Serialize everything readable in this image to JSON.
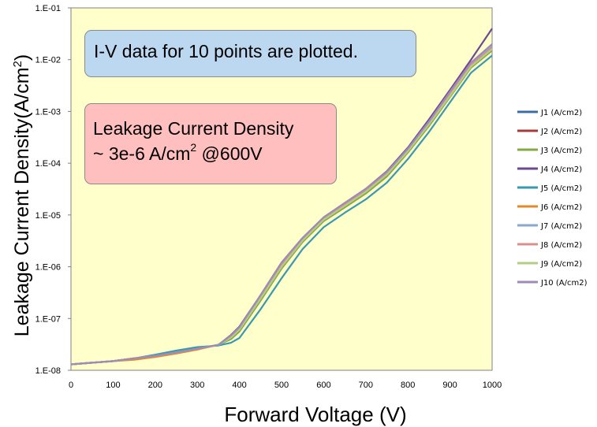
{
  "chart_data": {
    "type": "line",
    "xlabel": "Forward Voltage (V)",
    "ylabel": "Leakage Current Density(A/cm²)",
    "ylabel_main": "Leakage Current Density(A/cm",
    "ylabel_sup": "2",
    "ylabel_end": ")",
    "xlim": [
      0,
      1000
    ],
    "ylim": [
      1e-08,
      0.1
    ],
    "yscale": "log",
    "grid": false,
    "legend_position": "right",
    "plot_background": "#ffffcc",
    "x_ticks": [
      "0",
      "100",
      "200",
      "300",
      "400",
      "500",
      "600",
      "700",
      "800",
      "900",
      "1000"
    ],
    "x_tick_values": [
      0,
      100,
      200,
      300,
      400,
      500,
      600,
      700,
      800,
      900,
      1000
    ],
    "y_ticks": [
      "1.E-08",
      "1.E-07",
      "1.E-06",
      "1.E-05",
      "1.E-04",
      "1.E-03",
      "1.E-02",
      "1.E-01"
    ],
    "y_tick_values": [
      1e-08,
      1e-07,
      1e-06,
      1e-05,
      0.0001,
      0.001,
      0.01,
      0.1
    ],
    "x": [
      0,
      50,
      100,
      150,
      200,
      250,
      300,
      350,
      380,
      400,
      450,
      500,
      550,
      600,
      650,
      700,
      750,
      800,
      850,
      900,
      950,
      1000
    ],
    "series": [
      {
        "name": "J1 (A/cm2)",
        "color": "#3c6ea6",
        "values": [
          1.3e-08,
          1.4e-08,
          1.5e-08,
          1.7e-08,
          1.9e-08,
          2.2e-08,
          2.6e-08,
          3.1e-08,
          4.5e-08,
          6.5e-08,
          2.6e-07,
          1.1e-06,
          3.4e-06,
          8.6e-06,
          1.6e-05,
          3e-05,
          6.4e-05,
          0.00018,
          0.0006,
          0.0022,
          0.008,
          0.017
        ]
      },
      {
        "name": "J2 (A/cm2)",
        "color": "#a63c38",
        "values": [
          1.3e-08,
          1.4e-08,
          1.5e-08,
          1.7e-08,
          1.9e-08,
          2.2e-08,
          2.6e-08,
          3.1e-08,
          4.2e-08,
          6e-08,
          2.4e-07,
          1e-06,
          3.2e-06,
          8e-06,
          1.5e-05,
          2.8e-05,
          6e-05,
          0.00017,
          0.00056,
          0.002,
          0.0075,
          0.016
        ]
      },
      {
        "name": "J3 (A/cm2)",
        "color": "#86a844",
        "values": [
          1.3e-08,
          1.4e-08,
          1.5e-08,
          1.7e-08,
          1.9e-08,
          2.2e-08,
          2.6e-08,
          3.1e-08,
          4e-08,
          5.6e-08,
          2.2e-07,
          9.2e-07,
          3e-06,
          7.6e-06,
          1.4e-05,
          2.6e-05,
          5.5e-05,
          0.00016,
          0.00052,
          0.0019,
          0.007,
          0.015
        ]
      },
      {
        "name": "J4 (A/cm2)",
        "color": "#6c4a92",
        "values": [
          1.3e-08,
          1.4e-08,
          1.5e-08,
          1.7e-08,
          1.9e-08,
          2.2e-08,
          2.6e-08,
          3.1e-08,
          4.8e-08,
          7e-08,
          2.8e-07,
          1.2e-06,
          3.6e-06,
          9e-06,
          1.7e-05,
          3.2e-05,
          7e-05,
          0.0002,
          0.0007,
          0.0026,
          0.01,
          0.04
        ]
      },
      {
        "name": "J5 (A/cm2)",
        "color": "#3a98b0",
        "values": [
          1.3e-08,
          1.4e-08,
          1.5e-08,
          1.7e-08,
          2e-08,
          2.4e-08,
          2.8e-08,
          3e-08,
          3.4e-08,
          4.2e-08,
          1.5e-07,
          6e-07,
          2.2e-06,
          5.8e-06,
          1.1e-05,
          2e-05,
          4.2e-05,
          0.00012,
          0.0004,
          0.0015,
          0.0056,
          0.012
        ]
      },
      {
        "name": "J6 (A/cm2)",
        "color": "#e08a2c",
        "values": [
          1.3e-08,
          1.4e-08,
          1.5e-08,
          1.6e-08,
          1.8e-08,
          2.1e-08,
          2.5e-08,
          3.1e-08,
          4.4e-08,
          6.2e-08,
          2.5e-07,
          1e-06,
          3.3e-06,
          8.2e-06,
          1.5e-05,
          2.9e-05,
          6.2e-05,
          0.00017,
          0.00058,
          0.0021,
          0.0078,
          0.016
        ]
      },
      {
        "name": "J7 (A/cm2)",
        "color": "#8aa8d0",
        "values": [
          1.3e-08,
          1.4e-08,
          1.5e-08,
          1.7e-08,
          1.9e-08,
          2.2e-08,
          2.6e-08,
          3.1e-08,
          4.6e-08,
          6.6e-08,
          2.7e-07,
          1.1e-06,
          3.5e-06,
          8.8e-06,
          1.6e-05,
          3.1e-05,
          6.6e-05,
          0.00019,
          0.00062,
          0.0023,
          0.0084,
          0.018
        ]
      },
      {
        "name": "J8 (A/cm2)",
        "color": "#d8908c",
        "values": [
          1.3e-08,
          1.4e-08,
          1.5e-08,
          1.7e-08,
          1.9e-08,
          2.2e-08,
          2.6e-08,
          3.1e-08,
          4.5e-08,
          6.4e-08,
          2.6e-07,
          1.1e-06,
          3.4e-06,
          8.5e-06,
          1.6e-05,
          3e-05,
          6.3e-05,
          0.00018,
          0.0006,
          0.0022,
          0.008,
          0.017
        ]
      },
      {
        "name": "J9 (A/cm2)",
        "color": "#b4cc84",
        "values": [
          1.3e-08,
          1.4e-08,
          1.5e-08,
          1.7e-08,
          1.9e-08,
          2.2e-08,
          2.6e-08,
          3.1e-08,
          4.3e-08,
          6.1e-08,
          2.4e-07,
          1e-06,
          3.2e-06,
          8.1e-06,
          1.5e-05,
          2.8e-05,
          6e-05,
          0.00017,
          0.00056,
          0.002,
          0.0074,
          0.016
        ]
      },
      {
        "name": "J10 (A/cm2)",
        "color": "#a08ab8",
        "values": [
          1.3e-08,
          1.4e-08,
          1.5e-08,
          1.7e-08,
          1.9e-08,
          2.2e-08,
          2.6e-08,
          3.1e-08,
          4.7e-08,
          6.8e-08,
          2.8e-07,
          1.2e-06,
          3.6e-06,
          9e-06,
          1.7e-05,
          3.2e-05,
          6.8e-05,
          0.00019,
          0.00064,
          0.0024,
          0.0088,
          0.02
        ]
      }
    ],
    "annotations": [
      {
        "text": "I-V data for 10 points are plotted.",
        "background": "#bcd7f0"
      },
      {
        "text_line1": "Leakage Current Density",
        "text_line2_pre": "~ 3e-6 A/cm",
        "text_line2_sup": "2",
        "text_line2_post": " @600V",
        "background": "#ffbfbf"
      }
    ]
  }
}
